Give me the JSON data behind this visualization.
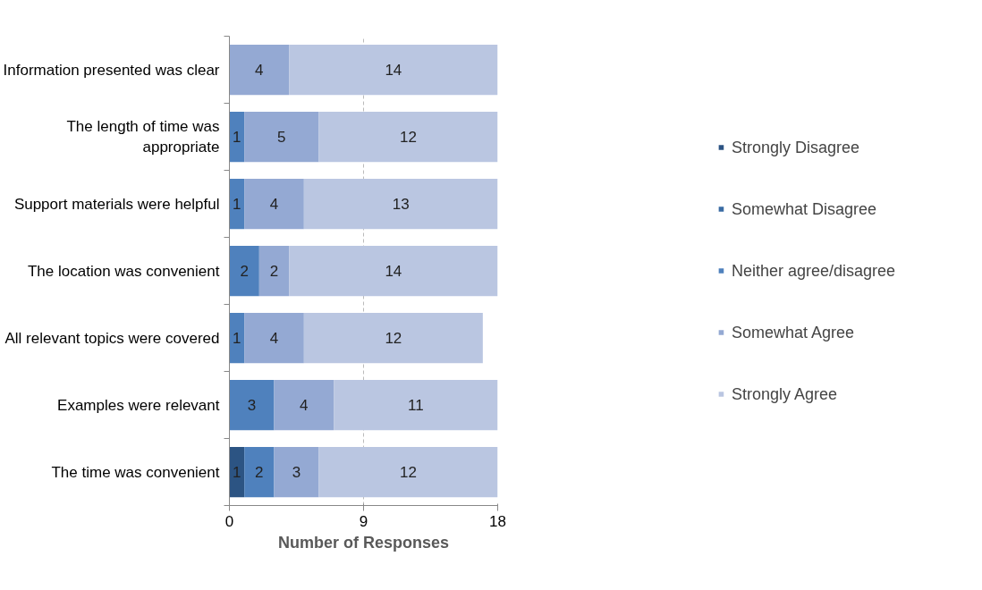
{
  "chart_data": {
    "type": "bar",
    "orientation": "horizontal",
    "stacked": true,
    "xlabel": "Number of Responses",
    "categories": [
      "Information presented was clear",
      "The length of time was appropriate",
      "Support materials were helpful",
      "The location was convenient",
      "All relevant topics were covered",
      "Examples were relevant",
      "The time was convenient"
    ],
    "series": [
      {
        "name": "Strongly Disagree",
        "color": "#2c5483",
        "values": [
          null,
          null,
          null,
          null,
          null,
          null,
          1
        ]
      },
      {
        "name": "Somewhat Disagree",
        "color": "#3a6ba3",
        "values": [
          null,
          null,
          null,
          null,
          null,
          null,
          null
        ]
      },
      {
        "name": "Neither agree/disagree",
        "color": "#4f81bd",
        "values": [
          null,
          1,
          1,
          2,
          1,
          3,
          2
        ]
      },
      {
        "name": "Somewhat Agree",
        "color": "#94a9d3",
        "values": [
          4,
          5,
          4,
          2,
          4,
          4,
          3
        ]
      },
      {
        "name": "Strongly Agree",
        "color": "#bac6e1",
        "values": [
          14,
          12,
          13,
          14,
          12,
          11,
          12
        ]
      }
    ],
    "xlim": [
      0,
      18
    ],
    "xticks": [
      0,
      9,
      18
    ],
    "grid": "x",
    "legend": "right",
    "data_labels": true
  }
}
